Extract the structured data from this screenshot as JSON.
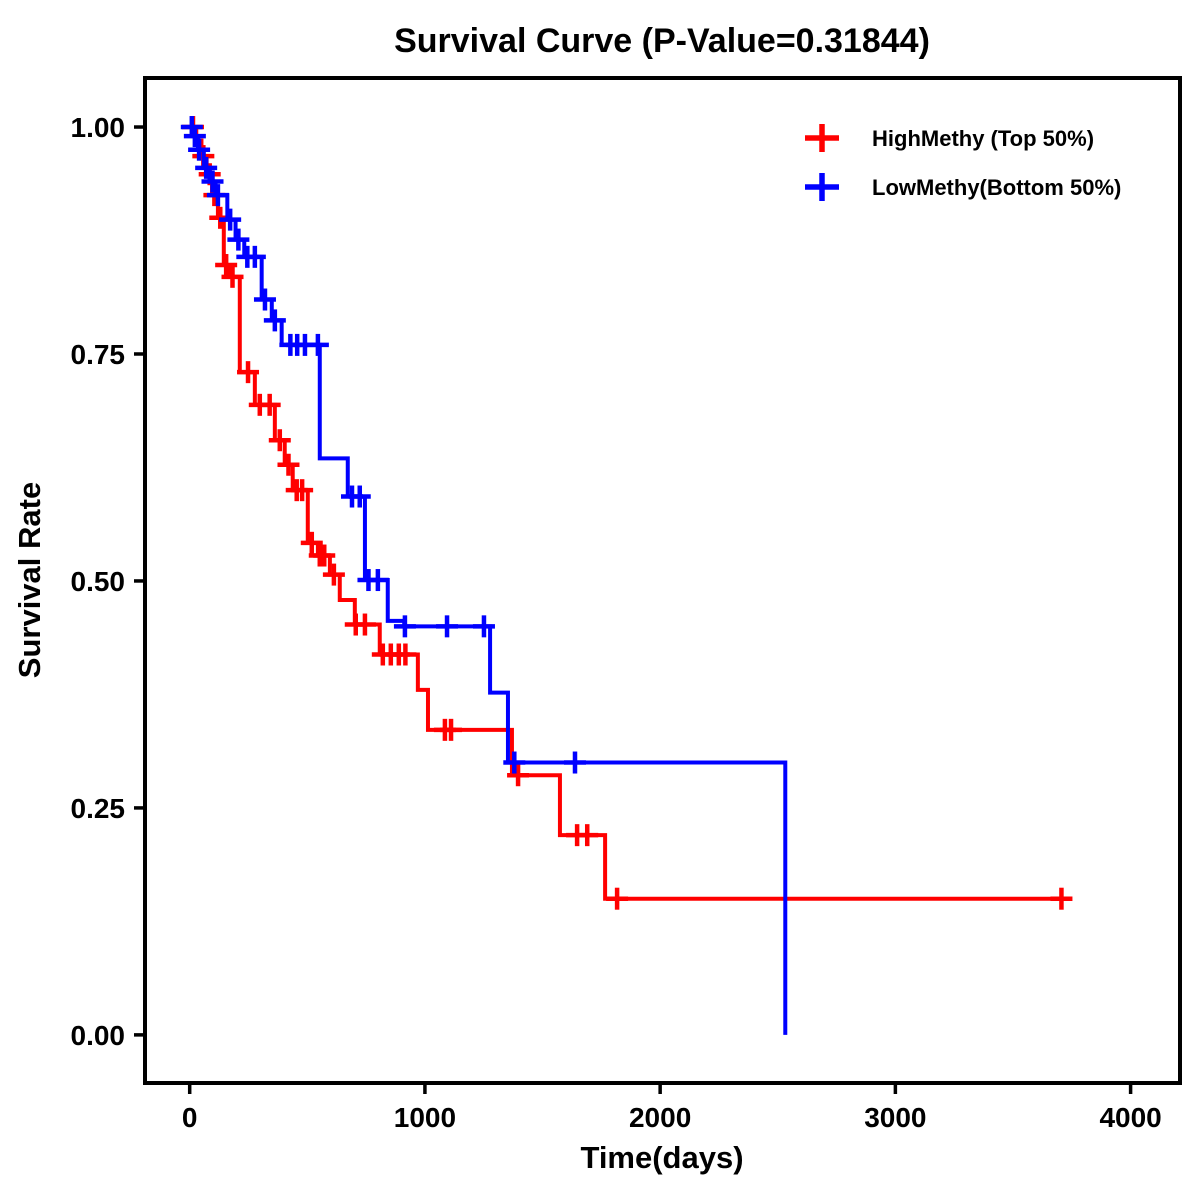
{
  "chart_data": {
    "type": "line",
    "subtype": "kaplan-meier-step",
    "title": "Survival Curve (P-Value=0.31844)",
    "xlabel": "Time(days)",
    "ylabel": "Survival Rate",
    "xlim": [
      -190,
      4210
    ],
    "ylim": [
      -0.053,
      1.054
    ],
    "xticks": [
      0,
      1000,
      2000,
      3000,
      4000
    ],
    "xtick_labels": [
      "0",
      "1000",
      "2000",
      "3000",
      "4000"
    ],
    "yticks": [
      0.0,
      0.25,
      0.5,
      0.75,
      1.0
    ],
    "ytick_labels": [
      "0.00",
      "0.25",
      "0.50",
      "0.75",
      "1.00"
    ],
    "grid": false,
    "legend_position": "top-right-inside",
    "legend": [
      {
        "label": "HighMethy (Top 50%)",
        "color": "#FF0000",
        "marker": "plus"
      },
      {
        "label": "LowMethy(Bottom 50%)",
        "color": "#0000FF",
        "marker": "plus"
      }
    ],
    "series": [
      {
        "name": "HighMethy (Top 50%)",
        "key": "highmethy",
        "color": "#FF0000",
        "end_time": 3720,
        "steps": [
          [
            0,
            1.0
          ],
          [
            28,
            0.985
          ],
          [
            50,
            0.968
          ],
          [
            72,
            0.948
          ],
          [
            95,
            0.925
          ],
          [
            120,
            0.9
          ],
          [
            145,
            0.848
          ],
          [
            168,
            0.835
          ],
          [
            213,
            0.73
          ],
          [
            277,
            0.694
          ],
          [
            362,
            0.655
          ],
          [
            404,
            0.628
          ],
          [
            438,
            0.6
          ],
          [
            502,
            0.542
          ],
          [
            545,
            0.528
          ],
          [
            596,
            0.507
          ],
          [
            638,
            0.479
          ],
          [
            702,
            0.452
          ],
          [
            808,
            0.419
          ],
          [
            970,
            0.38
          ],
          [
            1013,
            0.336
          ],
          [
            1370,
            0.286
          ],
          [
            1574,
            0.22
          ],
          [
            1766,
            0.15
          ]
        ],
        "censors": [
          [
            14,
            1.0
          ],
          [
            58,
            0.968
          ],
          [
            85,
            0.948
          ],
          [
            105,
            0.925
          ],
          [
            130,
            0.9
          ],
          [
            155,
            0.848
          ],
          [
            182,
            0.835
          ],
          [
            248,
            0.73
          ],
          [
            298,
            0.694
          ],
          [
            340,
            0.694
          ],
          [
            383,
            0.655
          ],
          [
            420,
            0.628
          ],
          [
            455,
            0.6
          ],
          [
            478,
            0.6
          ],
          [
            519,
            0.542
          ],
          [
            553,
            0.528
          ],
          [
            572,
            0.528
          ],
          [
            613,
            0.507
          ],
          [
            706,
            0.452
          ],
          [
            745,
            0.452
          ],
          [
            821,
            0.419
          ],
          [
            855,
            0.419
          ],
          [
            889,
            0.419
          ],
          [
            917,
            0.419
          ],
          [
            1085,
            0.336
          ],
          [
            1111,
            0.336
          ],
          [
            1396,
            0.286
          ],
          [
            1647,
            0.22
          ],
          [
            1690,
            0.22
          ],
          [
            1817,
            0.15
          ],
          [
            3706,
            0.15
          ]
        ]
      },
      {
        "name": "LowMethy(Bottom 50%)",
        "key": "lowmethy",
        "color": "#0000FF",
        "end_time": 2532,
        "steps": [
          [
            0,
            1.0
          ],
          [
            15,
            0.99
          ],
          [
            35,
            0.975
          ],
          [
            60,
            0.955
          ],
          [
            85,
            0.94
          ],
          [
            110,
            0.925
          ],
          [
            160,
            0.898
          ],
          [
            195,
            0.876
          ],
          [
            232,
            0.857
          ],
          [
            306,
            0.81
          ],
          [
            349,
            0.787
          ],
          [
            391,
            0.76
          ],
          [
            553,
            0.635
          ],
          [
            672,
            0.593
          ],
          [
            745,
            0.501
          ],
          [
            842,
            0.456
          ],
          [
            912,
            0.45
          ],
          [
            1277,
            0.377
          ],
          [
            1353,
            0.3
          ],
          [
            2532,
            0.0
          ]
        ],
        "censors": [
          [
            9,
            1.0
          ],
          [
            22,
            0.99
          ],
          [
            40,
            0.975
          ],
          [
            70,
            0.955
          ],
          [
            97,
            0.94
          ],
          [
            120,
            0.925
          ],
          [
            172,
            0.898
          ],
          [
            207,
            0.876
          ],
          [
            245,
            0.857
          ],
          [
            277,
            0.857
          ],
          [
            320,
            0.81
          ],
          [
            362,
            0.787
          ],
          [
            428,
            0.76
          ],
          [
            457,
            0.76
          ],
          [
            490,
            0.76
          ],
          [
            545,
            0.76
          ],
          [
            690,
            0.593
          ],
          [
            723,
            0.593
          ],
          [
            760,
            0.501
          ],
          [
            800,
            0.501
          ],
          [
            915,
            0.45
          ],
          [
            1094,
            0.45
          ],
          [
            1251,
            0.45
          ],
          [
            1380,
            0.3
          ],
          [
            1638,
            0.3
          ]
        ]
      }
    ]
  }
}
